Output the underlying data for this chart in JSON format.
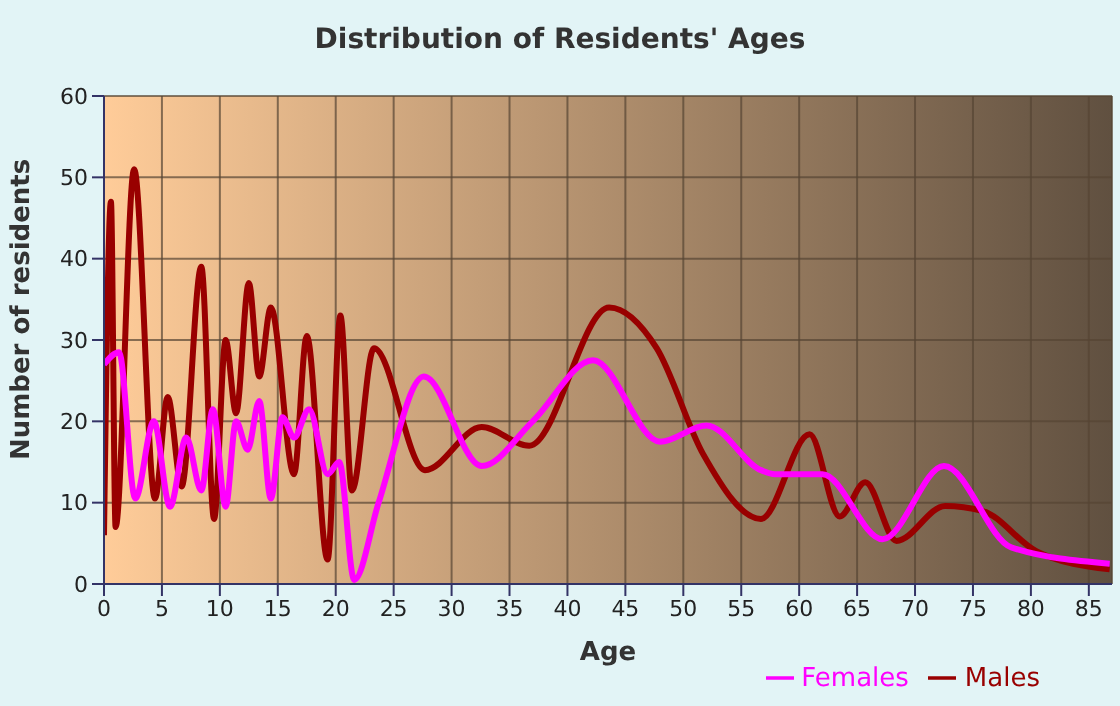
{
  "chart_data": {
    "type": "line",
    "title": "Distribution of Residents' Ages",
    "xlabel": "Age",
    "ylabel": "Number of residents",
    "xlim": [
      0,
      87
    ],
    "xticks": [
      0,
      5,
      10,
      15,
      20,
      25,
      30,
      35,
      40,
      45,
      50,
      55,
      60,
      65,
      70,
      75,
      80,
      85
    ],
    "ylim": [
      0,
      60
    ],
    "yticks": [
      0,
      10,
      20,
      30,
      40,
      50,
      60
    ],
    "grid": true,
    "legend": "bottom right",
    "marker": "none",
    "line_style": "solid",
    "series": [
      {
        "name": "Males",
        "color": "#990000",
        "x": [
          0,
          0.6,
          1,
          2.6,
          4.4,
          5.5,
          6.7,
          8.4,
          9.5,
          10.5,
          11.4,
          12.5,
          13.4,
          14.4,
          16.4,
          17.5,
          19.3,
          20.4,
          21.4,
          23.3,
          27.7,
          32.6,
          36.7,
          43.6,
          47.7,
          51.7,
          56.7,
          60.9,
          63.5,
          65.7,
          68.4,
          72.6,
          75.8,
          80.5,
          86.8
        ],
        "values": [
          6,
          47,
          7,
          51,
          10.5,
          23,
          12,
          39,
          8,
          30,
          21,
          37,
          25.5,
          34,
          13.5,
          30.5,
          3,
          33,
          11.5,
          29,
          14,
          19.3,
          17,
          34,
          29,
          16,
          8,
          18.4,
          8.3,
          12.5,
          5.3,
          9.6,
          9,
          4,
          1.8
        ]
      },
      {
        "name": "Females",
        "color": "#ff00ff",
        "x": [
          0,
          1.3,
          2.7,
          4.3,
          5.7,
          7.1,
          8.4,
          9.4,
          10.5,
          11.4,
          12.4,
          13.4,
          14.4,
          15.4,
          16.4,
          17.7,
          19.3,
          20.3,
          21.6,
          23.7,
          27.6,
          32.6,
          37,
          42.2,
          48,
          52,
          56.7,
          57.9,
          62,
          67.2,
          72.5,
          78.3,
          86.8
        ],
        "values": [
          27,
          28.5,
          10.5,
          20,
          9.5,
          18,
          11.5,
          21.5,
          9.5,
          20,
          16.5,
          22.5,
          10.5,
          20.5,
          18,
          21.5,
          13.5,
          15,
          0.5,
          10,
          25.5,
          14.5,
          20,
          27.5,
          17.5,
          19.5,
          14,
          13.5,
          13.5,
          5.5,
          14.5,
          4.5,
          2.5
        ]
      }
    ]
  }
}
